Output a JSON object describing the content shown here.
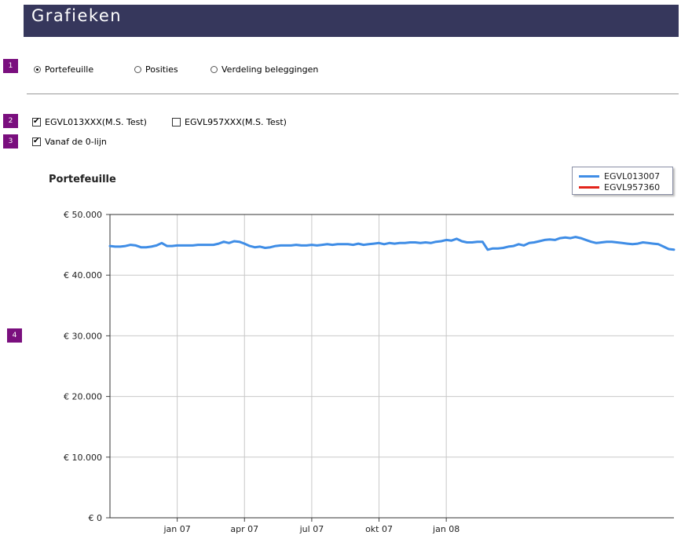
{
  "header": {
    "title": "Grafieken"
  },
  "badges": [
    "1",
    "2",
    "3",
    "4"
  ],
  "view_options": [
    {
      "label": "Portefeuille",
      "checked": true
    },
    {
      "label": "Posities",
      "checked": false
    },
    {
      "label": "Verdeling beleggingen",
      "checked": false
    }
  ],
  "accounts": [
    {
      "label": "EGVL013XXX(M.S. Test)",
      "checked": true
    },
    {
      "label": "EGVL957XXX(M.S. Test)",
      "checked": false
    }
  ],
  "zero_line": {
    "label": "Vanaf de 0-lijn",
    "checked": true
  },
  "chart_data": {
    "type": "line",
    "title": "Portefeuille",
    "xlabel": "",
    "ylabel": "",
    "y_ticks": [
      "€ 0",
      "€ 10.000",
      "€ 20.000",
      "€ 30.000",
      "€ 40.000",
      "€ 50.000"
    ],
    "ylim": [
      0,
      50000
    ],
    "x_ticks": [
      "jan 07",
      "apr 07",
      "jul 07",
      "okt 07",
      "jan 08"
    ],
    "x_tick_index": [
      13,
      26,
      39,
      52,
      65
    ],
    "grid": true,
    "legend_position": "top-right",
    "series": [
      {
        "name": "EGVL013007",
        "color": "#3f8de6",
        "values": [
          44800,
          44700,
          44700,
          44800,
          45000,
          44900,
          44600,
          44600,
          44700,
          44900,
          45300,
          44800,
          44800,
          44900,
          44900,
          44900,
          44900,
          45000,
          45000,
          45000,
          45000,
          45200,
          45500,
          45300,
          45600,
          45500,
          45200,
          44800,
          44600,
          44700,
          44500,
          44600,
          44800,
          44900,
          44900,
          44900,
          45000,
          44900,
          44900,
          45000,
          44900,
          45000,
          45100,
          45000,
          45100,
          45100,
          45100,
          45000,
          45200,
          45000,
          45100,
          45200,
          45300,
          45100,
          45300,
          45200,
          45300,
          45300,
          45400,
          45400,
          45300,
          45400,
          45300,
          45500,
          45600,
          45800,
          45700,
          46000,
          45600,
          45400,
          45400,
          45500,
          45500,
          44200,
          44400,
          44400,
          44500,
          44700,
          44800,
          45100,
          44900,
          45300,
          45400,
          45600,
          45800,
          45900,
          45800,
          46100,
          46200,
          46100,
          46300,
          46100,
          45800,
          45500,
          45300,
          45400,
          45500,
          45500,
          45400,
          45300,
          45200,
          45100,
          45200,
          45400,
          45300,
          45200,
          45100,
          44700,
          44300,
          44200
        ]
      },
      {
        "name": "EGVL957360",
        "color": "#e3241b",
        "values": []
      }
    ]
  }
}
